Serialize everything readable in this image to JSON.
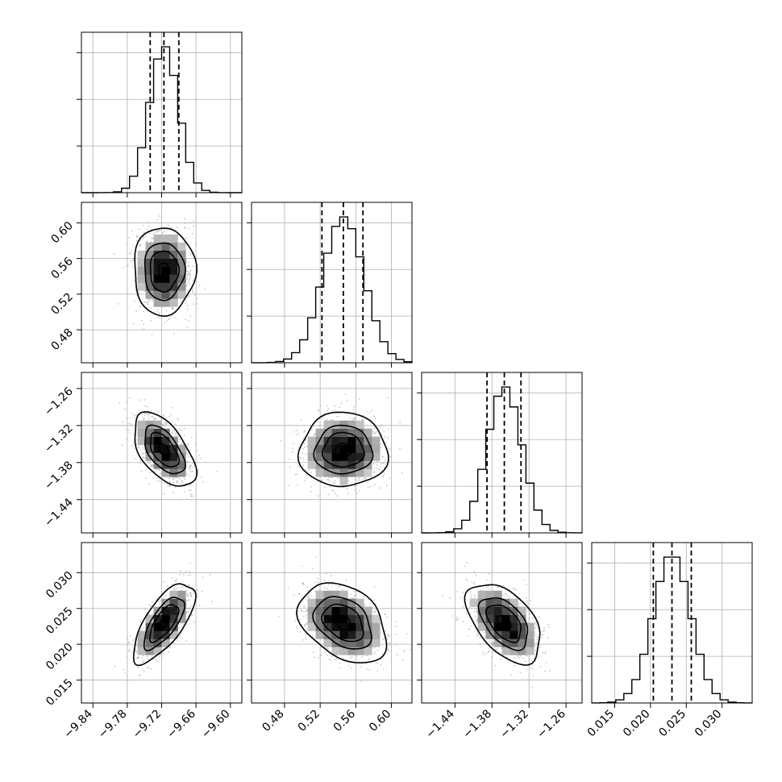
{
  "chart_data": {
    "type": "corner",
    "parameters": [
      {
        "range": [
          -9.86,
          -9.58
        ],
        "ticks": [
          -9.84,
          -9.78,
          -9.72,
          -9.66,
          -9.6
        ],
        "tick_labels": [
          "−9.84",
          "−9.78",
          "−9.72",
          "−9.66",
          "−9.60"
        ],
        "mean": -9.716,
        "std": 0.025,
        "quantiles": [
          -9.74,
          -9.716,
          -9.69
        ]
      },
      {
        "range": [
          0.443,
          0.623
        ],
        "ticks": [
          0.48,
          0.52,
          0.56,
          0.6
        ],
        "tick_labels": [
          "0.48",
          "0.52",
          "0.56",
          "0.60"
        ],
        "mean": 0.546,
        "std": 0.023,
        "quantiles": [
          0.522,
          0.546,
          0.568
        ]
      },
      {
        "range": [
          -1.494,
          -1.234
        ],
        "ticks": [
          -1.44,
          -1.38,
          -1.32,
          -1.26
        ],
        "tick_labels": [
          "−1.44",
          "−1.38",
          "−1.32",
          "−1.26"
        ],
        "mean": -1.36,
        "std": 0.028,
        "quantiles": [
          -1.388,
          -1.36,
          -1.333
        ]
      },
      {
        "range": [
          0.0118,
          0.0342
        ],
        "ticks": [
          0.015,
          0.02,
          0.025,
          0.03
        ],
        "tick_labels": [
          "0.015",
          "0.020",
          "0.025",
          "0.030"
        ],
        "mean": 0.023,
        "std": 0.0026,
        "quantiles": [
          0.0204,
          0.023,
          0.0257
        ]
      }
    ],
    "correlations": [
      [
        1.0,
        0.0,
        -0.55,
        0.7
      ],
      [
        0.0,
        1.0,
        0.0,
        -0.35
      ],
      [
        -0.55,
        0.0,
        1.0,
        -0.5
      ],
      [
        0.7,
        -0.35,
        -0.5,
        1.0
      ]
    ],
    "grid": true
  }
}
